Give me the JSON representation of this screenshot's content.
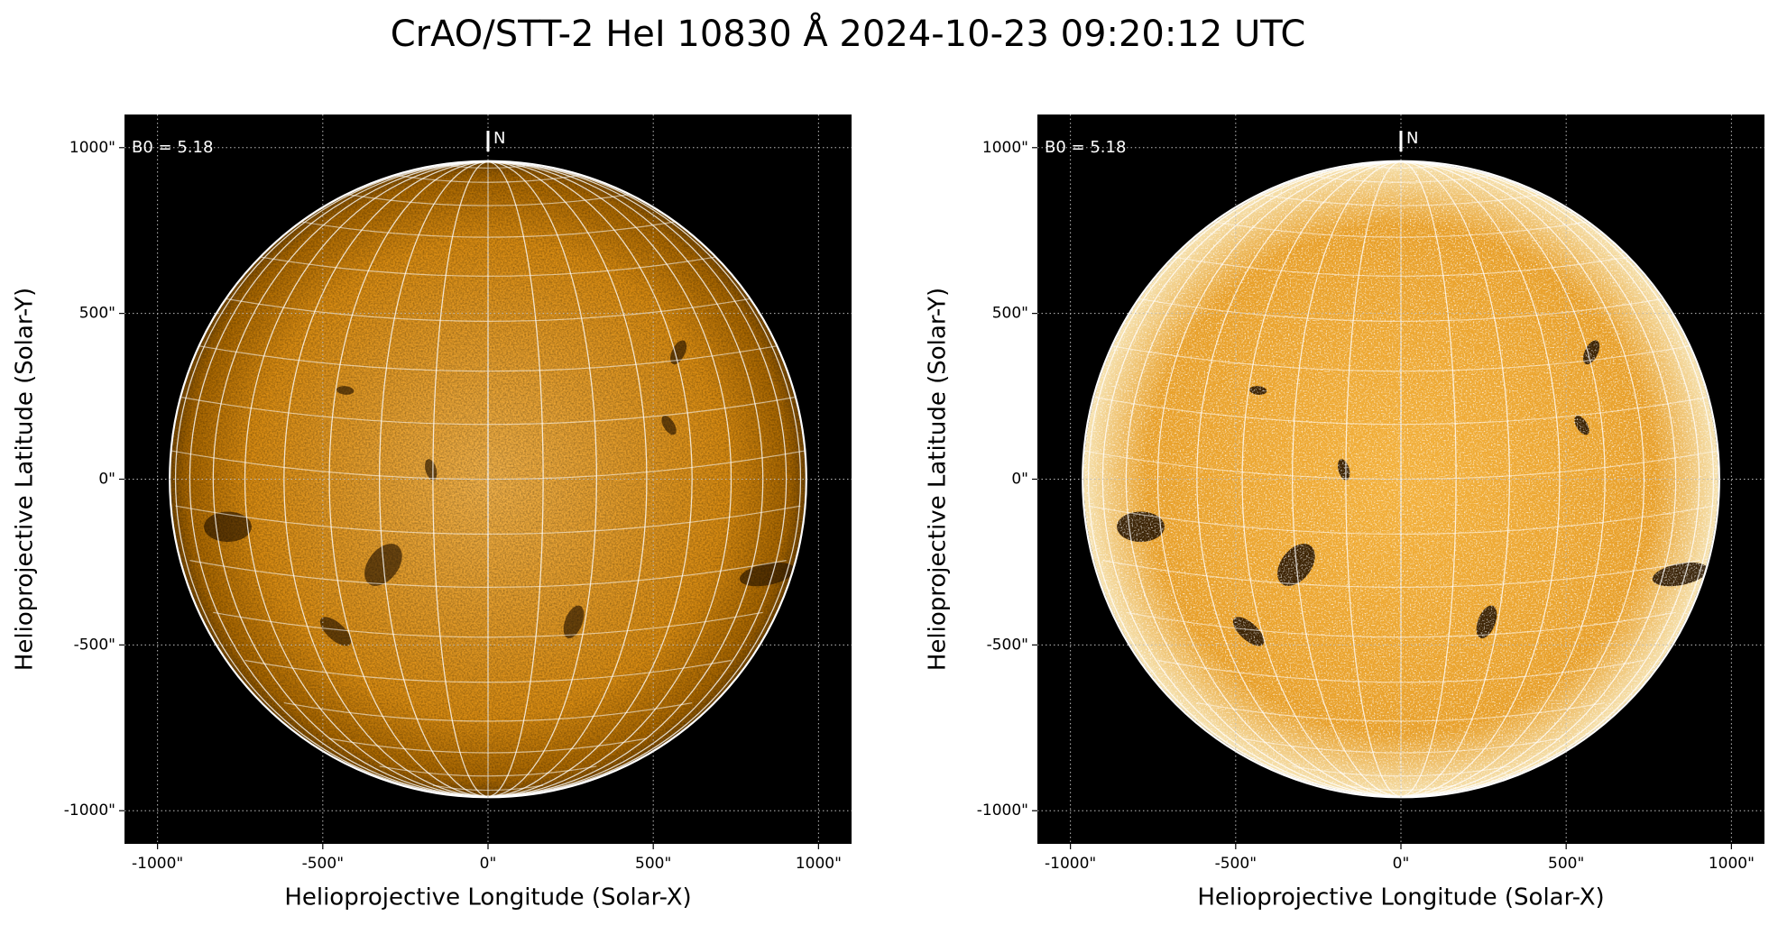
{
  "chart_data": [
    {
      "type": "image",
      "title": "CrAO/STT-2 HeI 10830 Å 2024-10-23 09:20:12 UTC",
      "annotation": "B0 = 5.18",
      "north_label": "N",
      "x_label": "Helioprojective Longitude (Solar-X)",
      "y_label": "Helioprojective Latitude (Solar-Y)",
      "xlim": [
        -1100,
        1100
      ],
      "ylim": [
        -1100,
        1100
      ],
      "xticks": [
        {
          "value": -1000,
          "label": "-1000\""
        },
        {
          "value": -500,
          "label": "-500\""
        },
        {
          "value": 0,
          "label": "0\""
        },
        {
          "value": 500,
          "label": "500\""
        },
        {
          "value": 1000,
          "label": "1000\""
        }
      ],
      "yticks": [
        {
          "value": -1000,
          "label": "-1000\""
        },
        {
          "value": -500,
          "label": "-500\""
        },
        {
          "value": 0,
          "label": "0\""
        },
        {
          "value": 500,
          "label": "500\""
        },
        {
          "value": 1000,
          "label": "1000\""
        }
      ],
      "grid": true
    },
    {
      "type": "image",
      "annotation": "B0 = 5.18",
      "north_label": "N",
      "x_label": "Helioprojective Longitude (Solar-X)",
      "y_label": "Helioprojective Latitude (Solar-Y)",
      "xlim": [
        -1100,
        1100
      ],
      "ylim": [
        -1100,
        1100
      ],
      "xticks": [
        {
          "value": -1000,
          "label": "-1000\""
        },
        {
          "value": -500,
          "label": "-500\""
        },
        {
          "value": 0,
          "label": "0\""
        },
        {
          "value": 500,
          "label": "500\""
        },
        {
          "value": 1000,
          "label": "1000\""
        }
      ],
      "yticks": [
        {
          "value": -1000,
          "label": "-1000\""
        },
        {
          "value": -500,
          "label": "-500\""
        },
        {
          "value": 0,
          "label": "0\""
        },
        {
          "value": 500,
          "label": "500\""
        },
        {
          "value": 1000,
          "label": "1000\""
        }
      ],
      "grid": true
    }
  ]
}
